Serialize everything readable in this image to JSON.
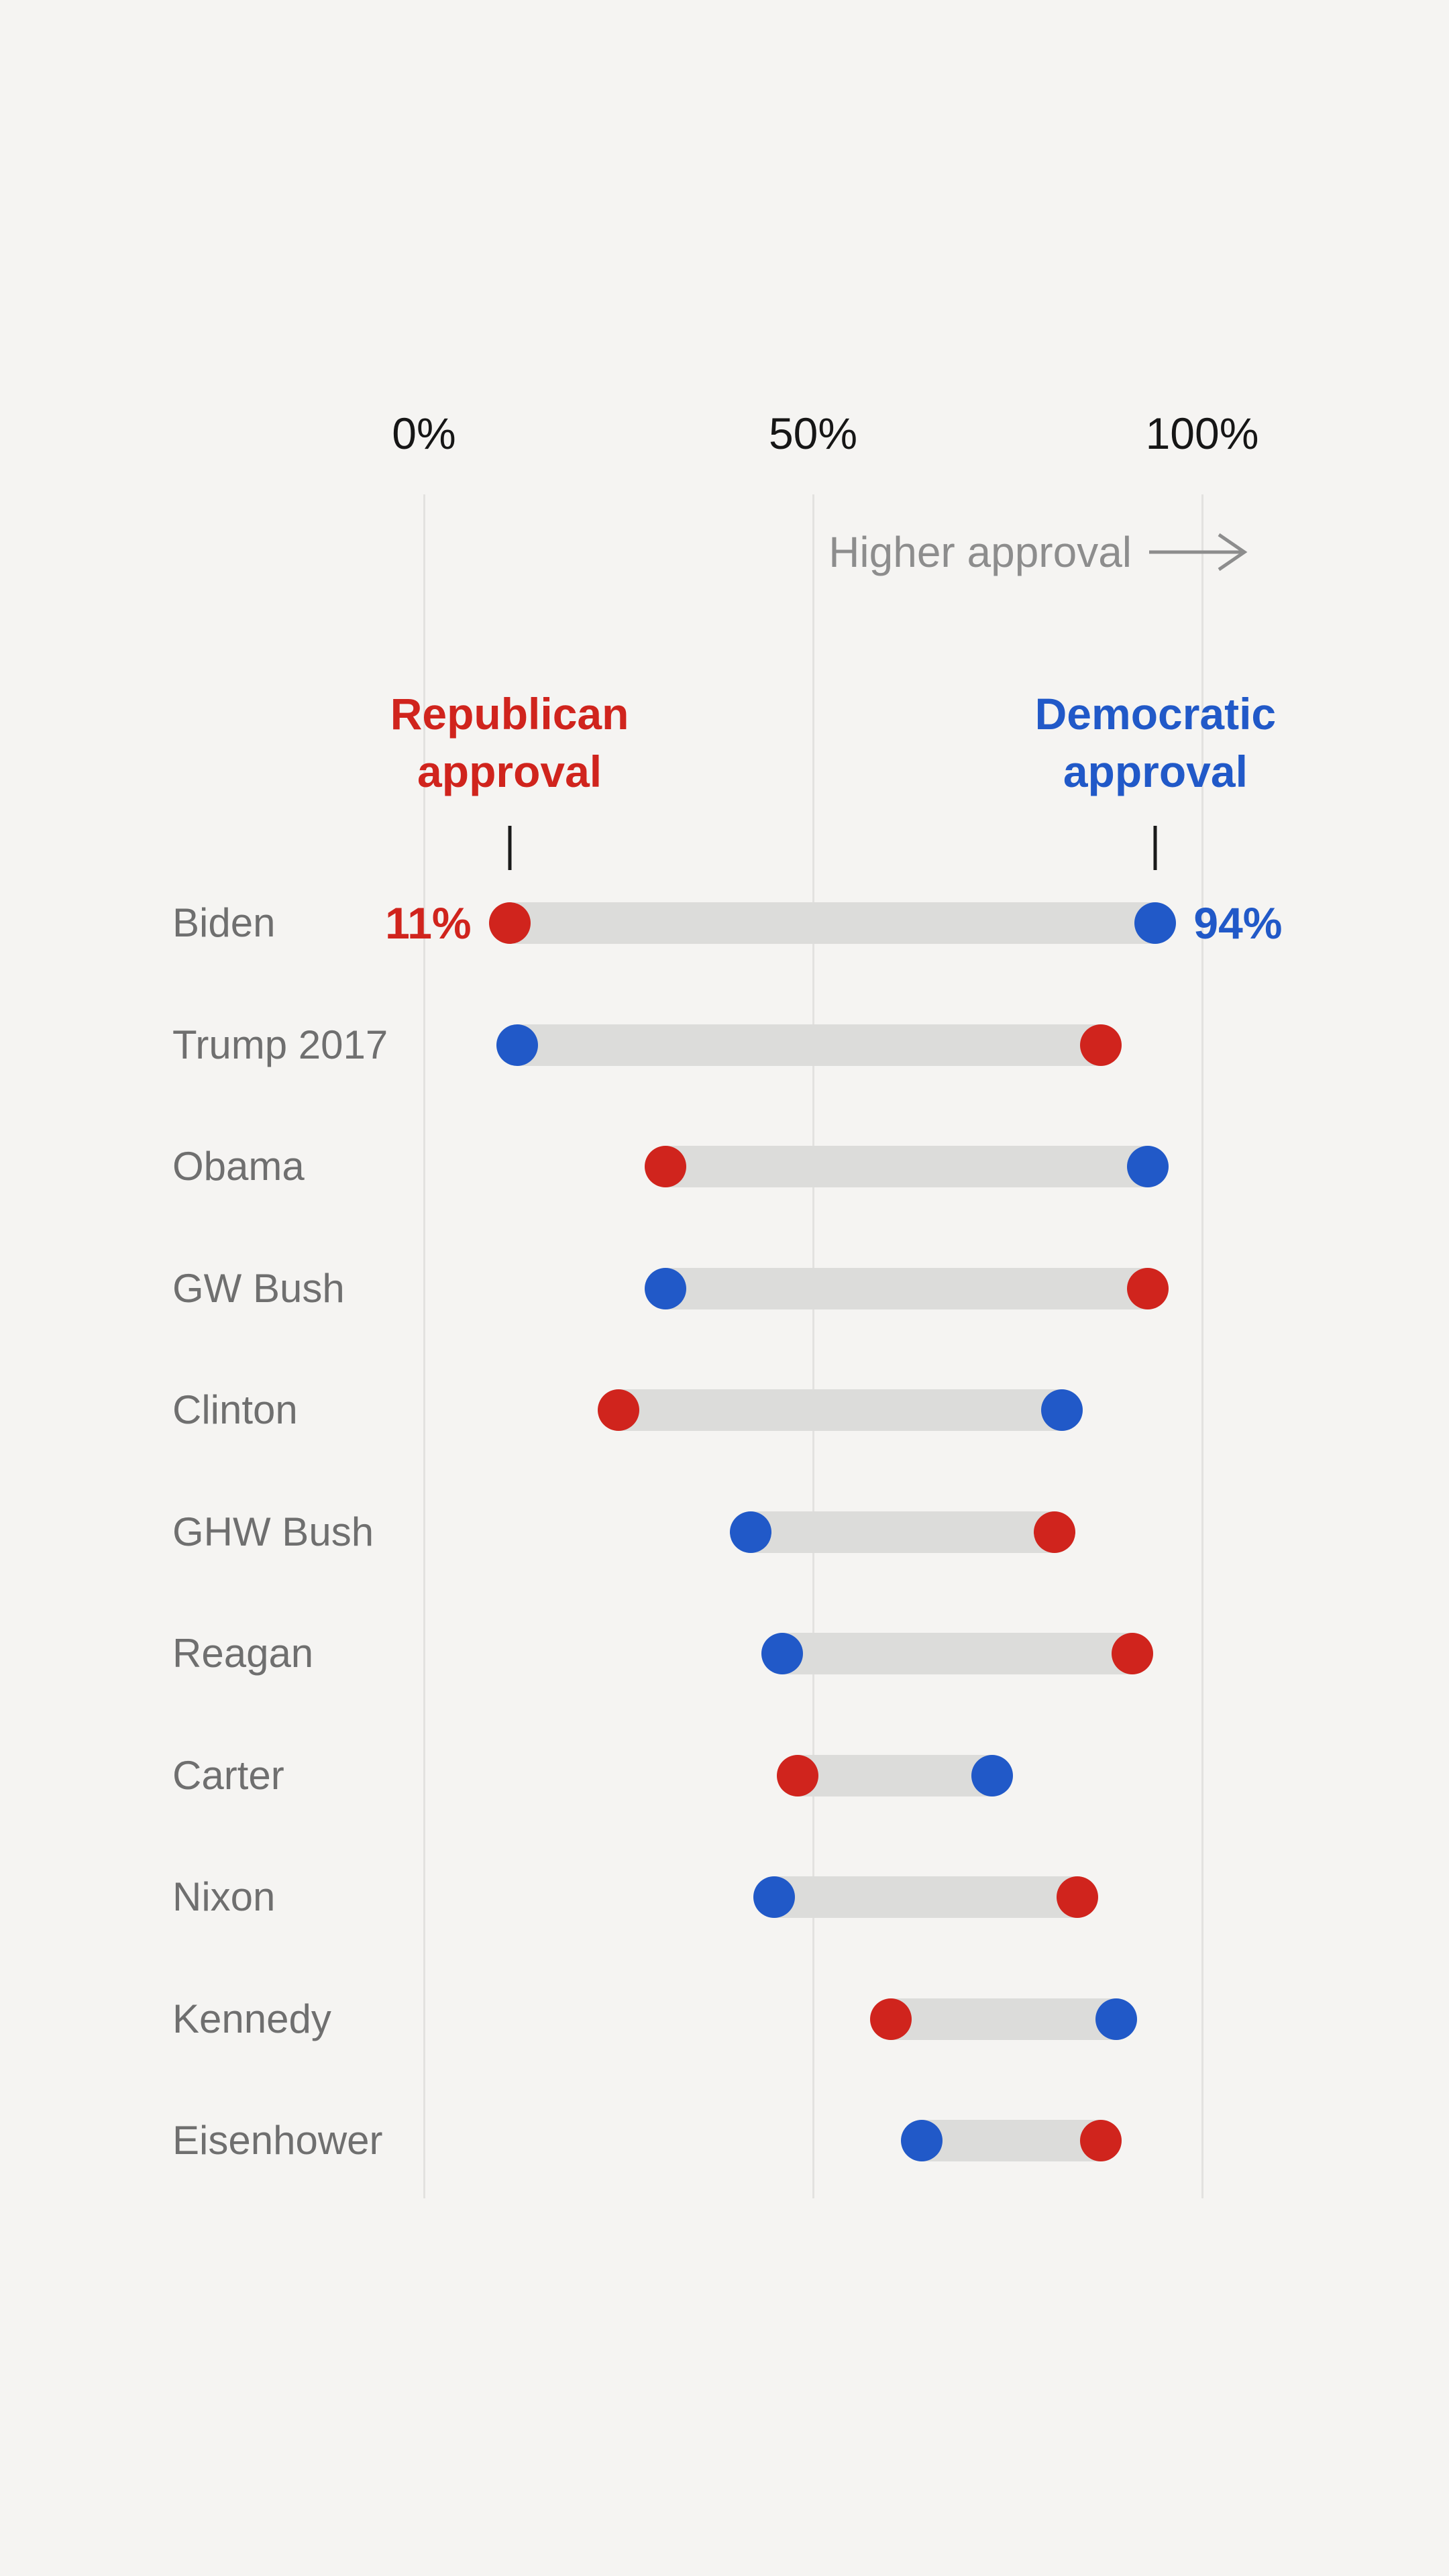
{
  "page_background": "#f5f4f2",
  "colors": {
    "republican": "#d0241d",
    "democratic": "#2159c8",
    "connector_bar": "#dcdcda",
    "gridline": "#e3e2e0",
    "axis_text": "#161616",
    "row_label_gray": "#6f6f6f",
    "annotation_gray": "#8d8d8d",
    "legend_tick_black": "#1a1a1a"
  },
  "annotation": {
    "higher_approval_label": "Higher approval",
    "arrow_icon": "right-arrow"
  },
  "legend": {
    "republican_label": "Republican\napproval",
    "democratic_label": "Democratic\napproval"
  },
  "chart_data": {
    "type": "dumbbell",
    "title": "",
    "x_axis": {
      "range": [
        0,
        100
      ],
      "ticks": [
        0,
        50,
        100
      ],
      "tick_labels": [
        "0%",
        "50%",
        "100%"
      ],
      "grid": true
    },
    "annotation": "Higher approval",
    "series_legend": [
      {
        "name": "Republican approval",
        "color_key": "republican"
      },
      {
        "name": "Democratic approval",
        "color_key": "democratic"
      }
    ],
    "rows": [
      {
        "president": "Biden",
        "republican": 11,
        "democratic": 94,
        "republican_label": "11%",
        "democratic_label": "94%"
      },
      {
        "president": "Trump 2017",
        "republican": 87,
        "democratic": 12
      },
      {
        "president": "Obama",
        "republican": 31,
        "democratic": 93
      },
      {
        "president": "GW Bush",
        "republican": 93,
        "democratic": 31
      },
      {
        "president": "Clinton",
        "republican": 25,
        "democratic": 82
      },
      {
        "president": "GHW Bush",
        "republican": 81,
        "democratic": 42
      },
      {
        "president": "Reagan",
        "republican": 91,
        "democratic": 46
      },
      {
        "president": "Carter",
        "republican": 48,
        "democratic": 73
      },
      {
        "president": "Nixon",
        "republican": 84,
        "democratic": 45
      },
      {
        "president": "Kennedy",
        "republican": 60,
        "democratic": 89
      },
      {
        "president": "Eisenhower",
        "republican": 87,
        "democratic": 64
      }
    ]
  }
}
